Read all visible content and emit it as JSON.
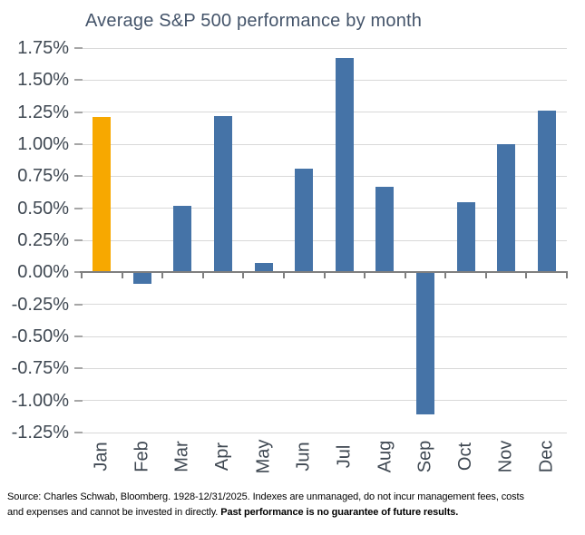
{
  "chart_data": {
    "type": "bar",
    "title": "Average S&P 500 performance by month",
    "categories": [
      "Jan",
      "Feb",
      "Mar",
      "Apr",
      "May",
      "Jun",
      "Jul",
      "Aug",
      "Sep",
      "Oct",
      "Nov",
      "Dec"
    ],
    "values": [
      1.21,
      -0.09,
      0.52,
      1.22,
      0.07,
      0.81,
      1.67,
      0.67,
      -1.11,
      0.55,
      1.0,
      1.26
    ],
    "unit": "%",
    "xlabel": "",
    "ylabel": "",
    "ylim": [
      -1.25,
      1.75
    ],
    "ytick_step": 0.25,
    "ytick_labels": [
      "1.75%",
      "1.50%",
      "1.25%",
      "1.00%",
      "0.75%",
      "0.50%",
      "0.25%",
      "0.00%",
      "-0.25%",
      "-0.50%",
      "-0.75%",
      "-1.00%",
      "-1.25%"
    ],
    "grid": true,
    "legend": "none",
    "highlight_category": "Jan",
    "bar_color": "#4573A7",
    "highlight_color": "#F7A800"
  },
  "colors": {
    "title": "#44546A",
    "axis_label": "#3f4852",
    "gridline": "#d9d9d9",
    "axis_line": "#7f7f7f"
  },
  "footer": {
    "line1": "Source: Charles Schwab, Bloomberg. 1928-12/31/2025. Indexes are unmanaged, do not incur management fees, costs",
    "line2_regular": "and expenses and cannot be invested in directly. ",
    "line2_bold": "Past performance is no guarantee of future results."
  }
}
